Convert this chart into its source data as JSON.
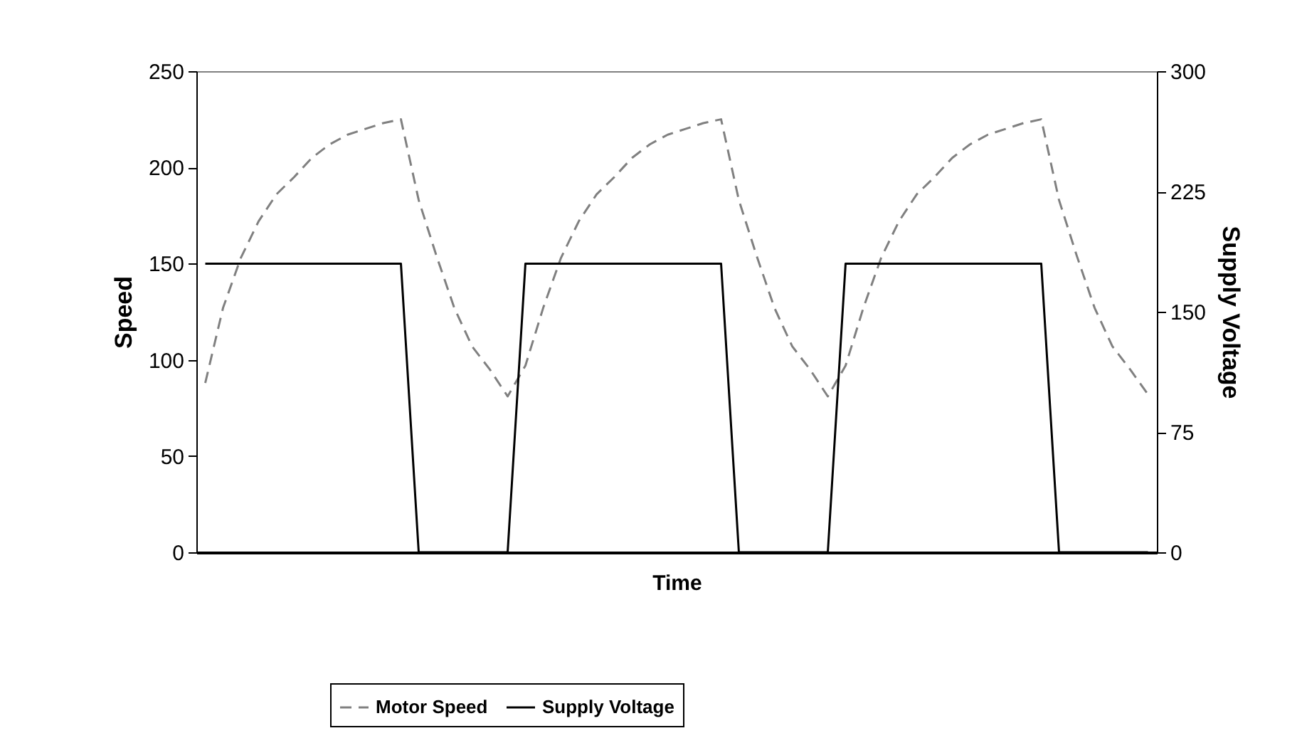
{
  "chart_data": {
    "type": "line",
    "xlabel": "Time",
    "ylabel": "Speed",
    "y2label": "Supply Voltage",
    "categories": [
      null,
      null,
      null,
      null,
      null,
      null,
      null,
      null,
      null,
      null,
      null,
      null,
      null,
      null,
      null,
      null,
      null,
      null,
      null,
      null,
      null,
      null,
      null,
      null,
      null,
      null,
      null,
      null,
      null,
      null,
      null,
      null,
      null,
      null,
      null,
      null,
      null,
      null,
      null,
      null,
      null,
      null,
      null,
      null,
      null,
      null,
      null,
      null,
      null,
      null,
      null,
      null,
      null,
      null
    ],
    "series": [
      {
        "name": "Motor Speed",
        "color": "#808080",
        "line_style": "dashed",
        "values": [
          88,
          127,
          153,
          172,
          186,
          195,
          205,
          212,
          217,
          220,
          223,
          225,
          183,
          154,
          127,
          107,
          95,
          81,
          97,
          127,
          153,
          172,
          186,
          195,
          205,
          212,
          217,
          220,
          223,
          225,
          183,
          154,
          127,
          107,
          95,
          81,
          97,
          127,
          153,
          172,
          186,
          195,
          205,
          212,
          217,
          220,
          223,
          225,
          183,
          154,
          127,
          107,
          95,
          82
        ]
      },
      {
        "name": "Supply Voltage",
        "color": "#000000",
        "line_style": "solid",
        "axis": "y2",
        "values": [
          180,
          180,
          180,
          180,
          180,
          180,
          180,
          180,
          180,
          180,
          180,
          180,
          0,
          0,
          0,
          0,
          0,
          0,
          180,
          180,
          180,
          180,
          180,
          180,
          180,
          180,
          180,
          180,
          180,
          180,
          0,
          0,
          0,
          0,
          0,
          0,
          180,
          180,
          180,
          180,
          180,
          180,
          180,
          180,
          180,
          180,
          180,
          180,
          0,
          0,
          0,
          0,
          0,
          0
        ]
      }
    ],
    "ylim": [
      0,
      250
    ],
    "yticks": [
      0,
      50,
      100,
      150,
      200,
      250
    ],
    "y2lim": [
      0,
      300
    ],
    "y2ticks": [
      0,
      75,
      150,
      225,
      300
    ],
    "tick_labels": "y",
    "legend": "bottom"
  }
}
